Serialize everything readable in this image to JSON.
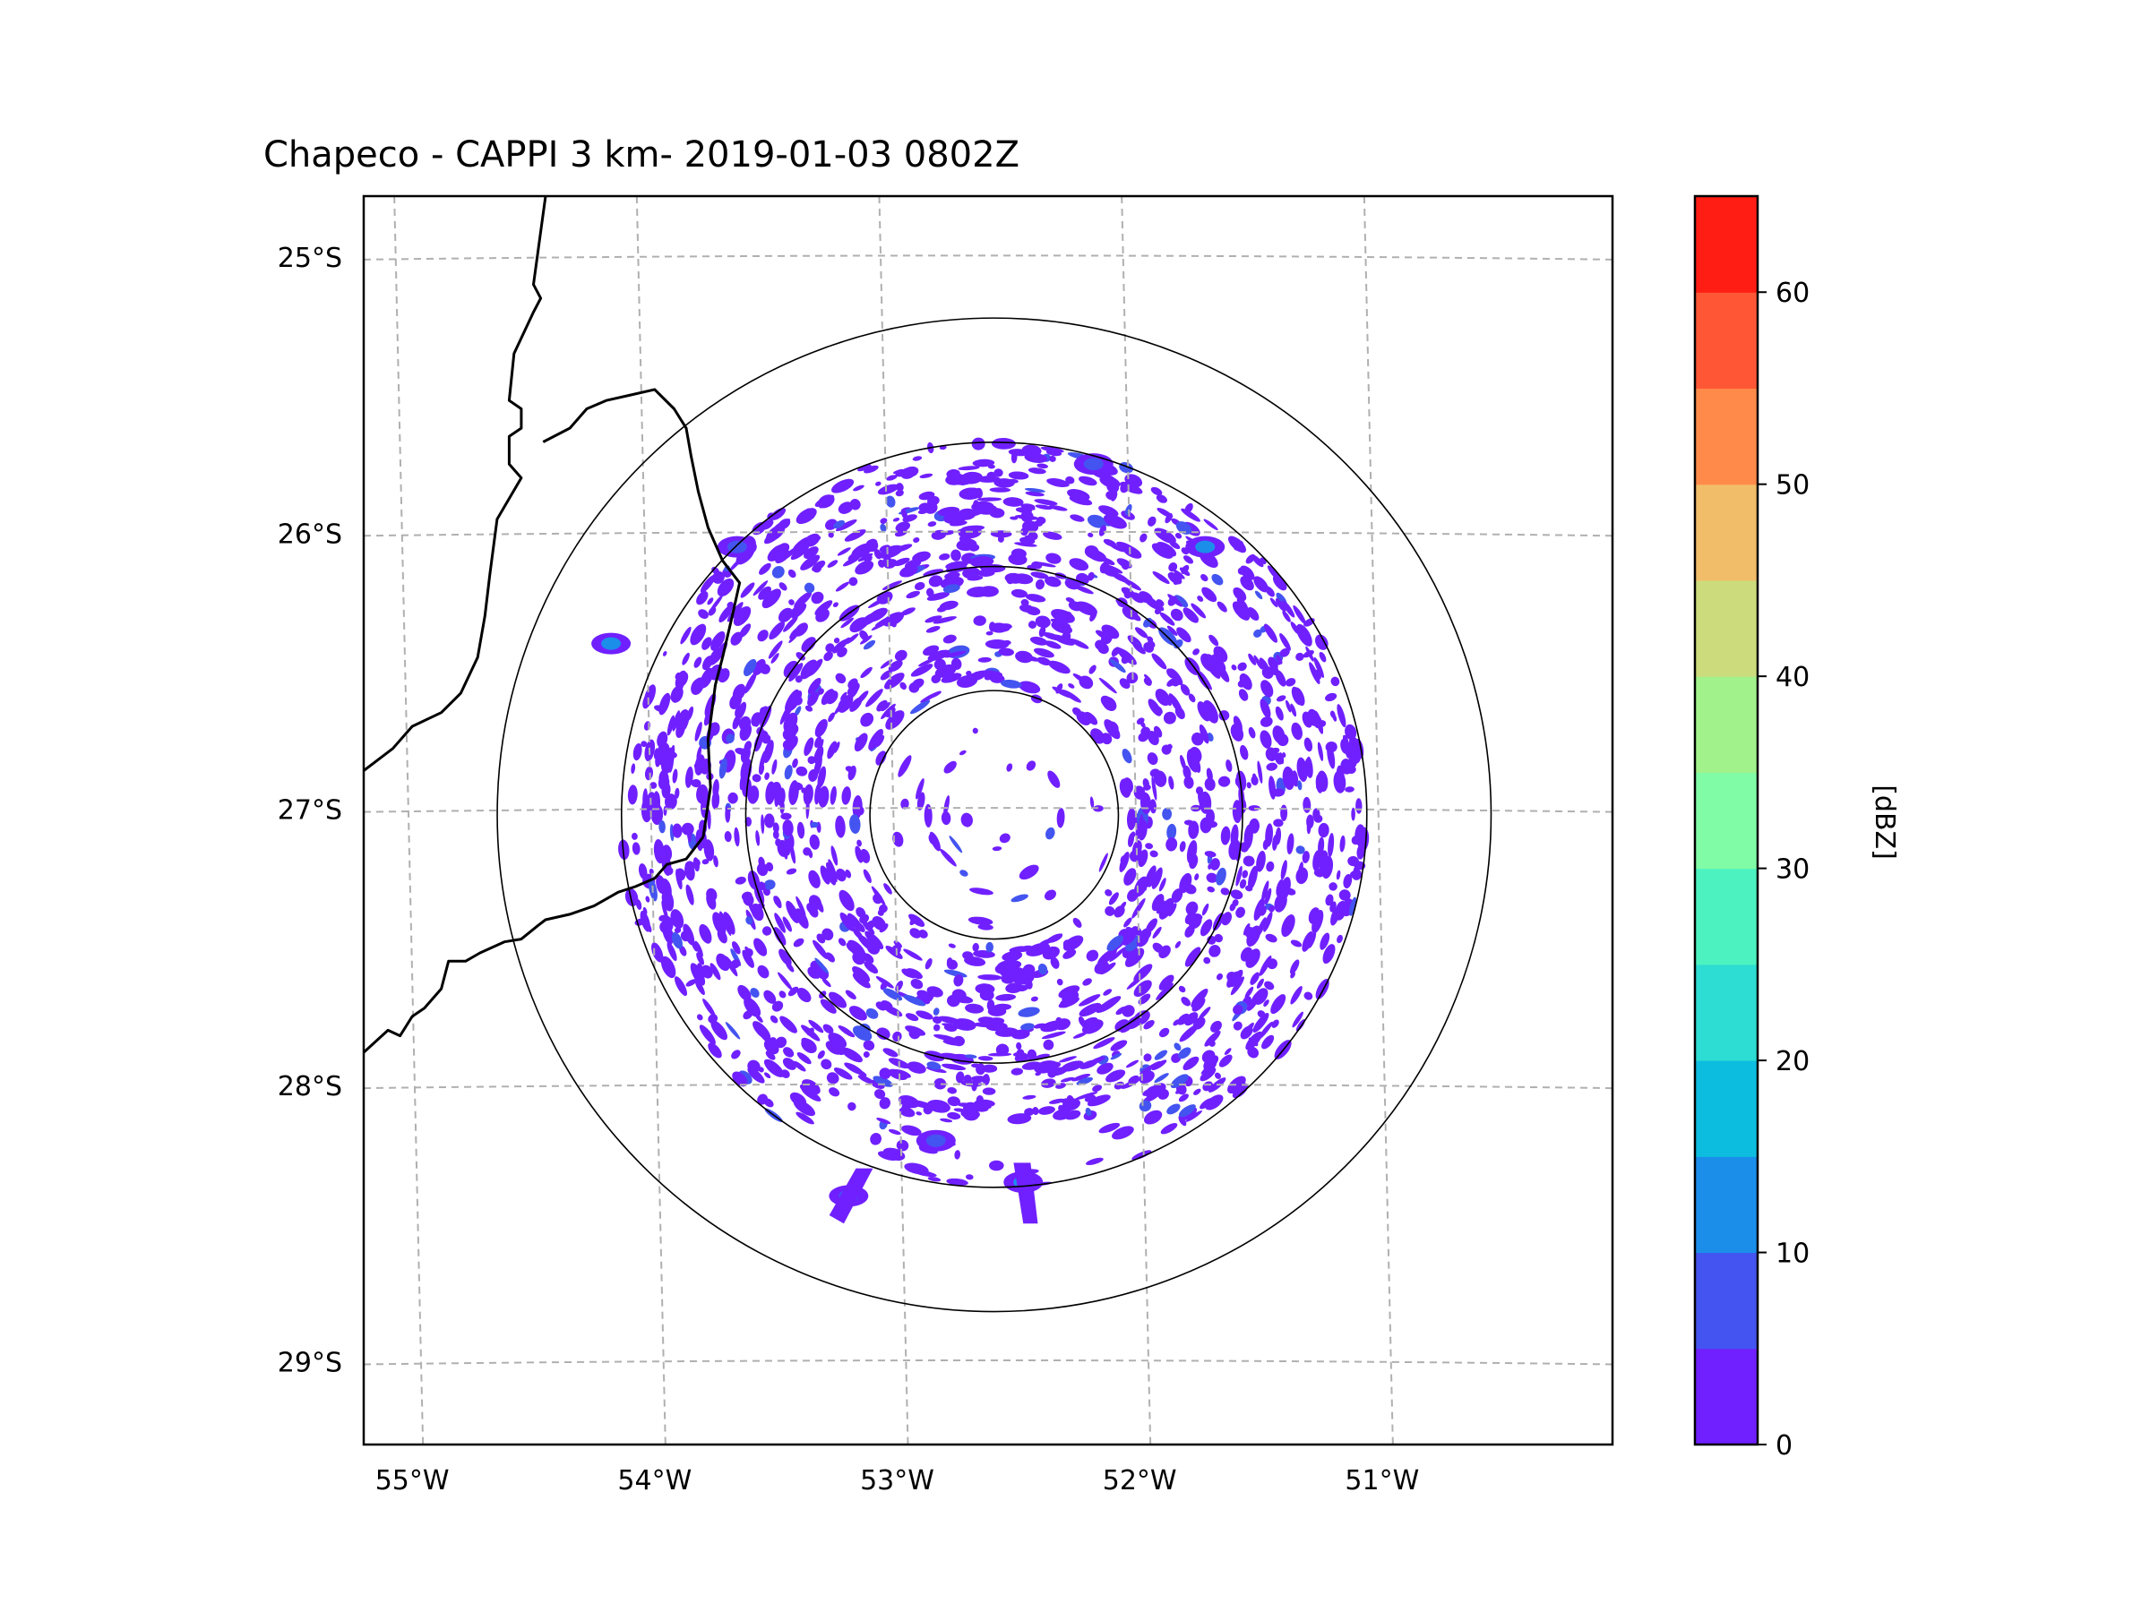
{
  "chart_data": {
    "type": "heatmap",
    "title": "Chapeco - CAPPI 3 km- 2019-01-03 0802Z",
    "radar": {
      "name": "Chapeco",
      "product": "CAPPI",
      "height_km": 3,
      "datetime": "2019-01-03 0802Z",
      "lon": -52.6,
      "lat": -27.02
    },
    "lon_range": [
      -55.2,
      -50.05
    ],
    "lat_range": [
      -29.3,
      -24.78
    ],
    "x_ticks": [
      {
        "value": -55,
        "label": "55°W"
      },
      {
        "value": -54,
        "label": "54°W"
      },
      {
        "value": -53,
        "label": "53°W"
      },
      {
        "value": -52,
        "label": "52°W"
      },
      {
        "value": -51,
        "label": "51°W"
      }
    ],
    "y_ticks": [
      {
        "value": -25,
        "label": "25°S"
      },
      {
        "value": -26,
        "label": "26°S"
      },
      {
        "value": -27,
        "label": "27°S"
      },
      {
        "value": -28,
        "label": "28°S"
      },
      {
        "value": -29,
        "label": "29°S"
      }
    ],
    "range_rings_km": [
      50,
      100,
      150,
      200
    ],
    "gridlines": true,
    "colorbar": {
      "label": "[dBZ]",
      "levels": [
        0,
        5,
        10,
        15,
        20,
        25,
        30,
        35,
        40,
        45,
        50,
        55,
        60,
        65
      ],
      "colors": [
        "#7020ff",
        "#4454f0",
        "#1b8eea",
        "#0cbde0",
        "#2ddcd2",
        "#4cf3c0",
        "#81fca6",
        "#a2f28c",
        "#ccdc7c",
        "#f1bd69",
        "#ff8a4a",
        "#ff5735",
        "#ff1d14"
      ],
      "ticks": [
        {
          "value": 0,
          "label": "0"
        },
        {
          "value": 10,
          "label": "10"
        },
        {
          "value": 20,
          "label": "20"
        },
        {
          "value": 30,
          "label": "30"
        },
        {
          "value": 40,
          "label": "40"
        },
        {
          "value": 50,
          "label": "50"
        },
        {
          "value": 60,
          "label": "60"
        }
      ]
    },
    "reflectivity_cores": [
      {
        "lon": -51.73,
        "lat": -26.05,
        "dbz": 12
      },
      {
        "lon": -53.2,
        "lat": -28.4,
        "dbz": 8
      },
      {
        "lon": -52.48,
        "lat": -28.35,
        "dbz": 10
      },
      {
        "lon": -52.84,
        "lat": -28.2,
        "dbz": 6
      },
      {
        "lon": -52.19,
        "lat": -25.75,
        "dbz": 5
      },
      {
        "lon": -53.66,
        "lat": -26.05,
        "dbz": 7
      },
      {
        "lon": -54.18,
        "lat": -26.4,
        "dbz": 10
      }
    ],
    "borders": [
      {
        "name": "western-border",
        "points": [
          [
            -54.45,
            -24.78
          ],
          [
            -54.5,
            -25.1
          ],
          [
            -54.47,
            -25.15
          ],
          [
            -54.5,
            -25.2
          ],
          [
            -54.58,
            -25.35
          ],
          [
            -54.6,
            -25.52
          ],
          [
            -54.55,
            -25.55
          ],
          [
            -54.55,
            -25.62
          ],
          [
            -54.6,
            -25.65
          ],
          [
            -54.6,
            -25.75
          ],
          [
            -54.55,
            -25.8
          ],
          [
            -54.65,
            -25.95
          ],
          [
            -54.68,
            -26.15
          ],
          [
            -54.7,
            -26.3
          ],
          [
            -54.73,
            -26.45
          ],
          [
            -54.8,
            -26.58
          ],
          [
            -54.88,
            -26.65
          ],
          [
            -55.0,
            -26.7
          ],
          [
            -55.08,
            -26.78
          ],
          [
            -55.2,
            -26.86
          ]
        ]
      },
      {
        "name": "western-border-south",
        "points": [
          [
            -55.2,
            -27.88
          ],
          [
            -55.1,
            -27.8
          ],
          [
            -55.05,
            -27.82
          ],
          [
            -55.0,
            -27.75
          ],
          [
            -54.95,
            -27.72
          ],
          [
            -54.88,
            -27.65
          ],
          [
            -54.85,
            -27.55
          ],
          [
            -54.78,
            -27.55
          ],
          [
            -54.72,
            -27.52
          ],
          [
            -54.62,
            -27.48
          ],
          [
            -54.55,
            -27.47
          ],
          [
            -54.48,
            -27.42
          ],
          [
            -54.45,
            -27.4
          ],
          [
            -54.35,
            -27.38
          ],
          [
            -54.25,
            -27.35
          ],
          [
            -54.15,
            -27.3
          ],
          [
            -54.08,
            -27.28
          ],
          [
            -54.0,
            -27.25
          ],
          [
            -53.95,
            -27.2
          ],
          [
            -53.87,
            -27.18
          ],
          [
            -53.8,
            -27.1
          ]
        ]
      },
      {
        "name": "state-border-loop",
        "points": [
          [
            -54.46,
            -25.67
          ],
          [
            -54.35,
            -25.62
          ],
          [
            -54.28,
            -25.55
          ],
          [
            -54.2,
            -25.52
          ],
          [
            -54.1,
            -25.5
          ],
          [
            -54.0,
            -25.48
          ],
          [
            -53.92,
            -25.55
          ],
          [
            -53.87,
            -25.62
          ],
          [
            -53.85,
            -25.72
          ],
          [
            -53.82,
            -25.85
          ],
          [
            -53.78,
            -25.98
          ],
          [
            -53.72,
            -26.1
          ],
          [
            -53.65,
            -26.18
          ],
          [
            -53.68,
            -26.3
          ],
          [
            -53.72,
            -26.45
          ],
          [
            -53.75,
            -26.55
          ],
          [
            -53.78,
            -26.75
          ],
          [
            -53.77,
            -26.92
          ],
          [
            -53.8,
            -27.1
          ]
        ]
      }
    ]
  }
}
